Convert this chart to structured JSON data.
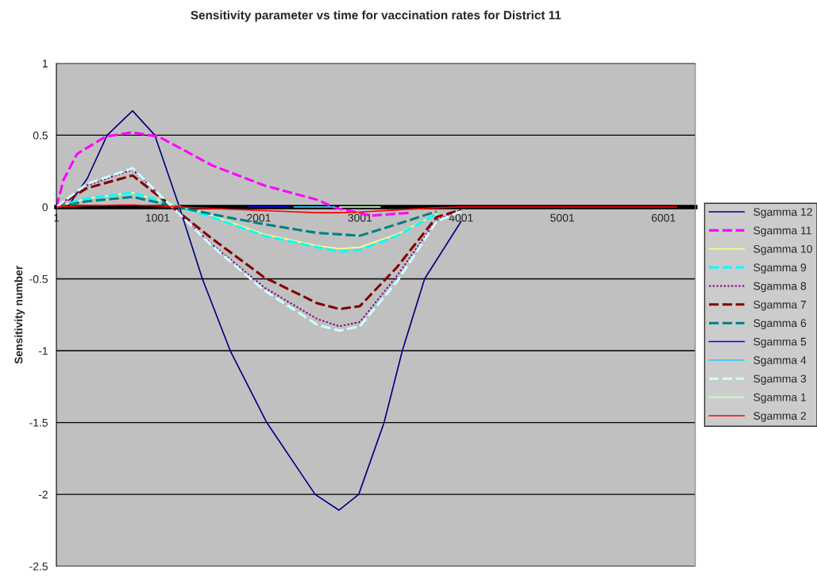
{
  "chart_data": {
    "type": "line",
    "title": "Sensitivity parameter vs time for vaccination rates for District 11",
    "ylabel": "Sensitivity number",
    "x": [
      1,
      300,
      754,
      1539,
      2056,
      2581,
      2800,
      3000,
      3366,
      3758,
      4000
    ],
    "xlim": [
      1,
      6315
    ],
    "xticks": [
      1,
      1001,
      2001,
      3001,
      4001,
      5001,
      6001
    ],
    "ylim": [
      -2.5,
      1
    ],
    "yticks": [
      -2.5,
      -2,
      -1.5,
      -1,
      -0.5,
      0,
      0.5,
      1
    ],
    "grid": "y",
    "legend": "right",
    "marker": "none",
    "series": [
      {
        "name": "Sgamma 12",
        "color": "#000080",
        "line_style": "solid",
        "x": [
          1,
          111,
          307,
          503,
          754,
          974,
          1217,
          1444,
          1719,
          2080,
          2558,
          2793,
          2989,
          3240,
          3420,
          3640,
          4001
        ],
        "values": [
          0,
          0,
          0.2,
          0.5,
          0.67,
          0.5,
          0,
          -0.5,
          -1,
          -1.5,
          -2,
          -2.11,
          -2,
          -1.5,
          -1,
          -0.5,
          -0.1
        ]
      },
      {
        "name": "Sgamma 11",
        "color": "#ff00ff",
        "line_style": "dashed",
        "x": [
          1,
          72,
          205,
          488,
          754,
          1013,
          1539,
          2056,
          2581,
          2738,
          3107,
          3500
        ],
        "values": [
          0,
          0.19,
          0.37,
          0.49,
          0.52,
          0.49,
          0.29,
          0.15,
          0.05,
          0,
          -0.06,
          -0.04
        ]
      },
      {
        "name": "Sgamma 10",
        "color": "#ffff80",
        "line_style": "solid",
        "values": [
          0,
          0.06,
          0.1,
          -0.06,
          -0.19,
          -0.27,
          -0.29,
          -0.28,
          -0.19,
          -0.05,
          null
        ]
      },
      {
        "name": "Sgamma 9",
        "color": "#00ffff",
        "line_style": "dashed",
        "values": [
          0,
          0.06,
          0.1,
          -0.07,
          -0.2,
          -0.28,
          -0.31,
          -0.3,
          -0.2,
          -0.05,
          null
        ]
      },
      {
        "name": "Sgamma 8",
        "color": "#800080",
        "line_style": "dotted",
        "values": [
          0,
          0.15,
          0.26,
          -0.26,
          -0.56,
          -0.78,
          -0.83,
          -0.8,
          -0.48,
          -0.09,
          -0.02
        ]
      },
      {
        "name": "Sgamma 7",
        "color": "#800000",
        "line_style": "dashed",
        "values": [
          0,
          0.13,
          0.22,
          -0.22,
          -0.49,
          -0.67,
          -0.71,
          -0.69,
          -0.42,
          -0.07,
          -0.02
        ]
      },
      {
        "name": "Sgamma 6",
        "color": "#008080",
        "line_style": "dashed",
        "values": [
          0,
          0.04,
          0.07,
          -0.05,
          -0.12,
          -0.18,
          -0.19,
          -0.2,
          -0.12,
          -0.03,
          null
        ]
      },
      {
        "name": "Sgamma 5",
        "color": "#0000ff",
        "line_style": "solid",
        "x": [
          1900,
          2300
        ],
        "values": [
          0,
          0
        ]
      },
      {
        "name": "Sgamma 4",
        "color": "#33ccff",
        "line_style": "solid",
        "x": [
          2350,
          2750
        ],
        "values": [
          0,
          0
        ]
      },
      {
        "name": "Sgamma 3",
        "color": "#ccffff",
        "line_style": "dashed",
        "values": [
          0,
          0.16,
          0.27,
          -0.27,
          -0.58,
          -0.82,
          -0.86,
          -0.83,
          -0.52,
          -0.1,
          -0.03
        ]
      },
      {
        "name": "Sgamma 1",
        "color": "#ccffcc",
        "line_style": "solid",
        "x": [
          2800,
          3200
        ],
        "values": [
          0,
          0
        ]
      },
      {
        "name": "Sgamma 2",
        "color": "#ff0000",
        "line_style": "solid",
        "x": [
          1,
          300,
          754,
          1217,
          1539,
          2056,
          2581,
          2800,
          3000,
          3366,
          3758,
          4000,
          4400,
          5000,
          6131
        ],
        "values": [
          0,
          0.01,
          0.015,
          0,
          -0.01,
          -0.025,
          -0.04,
          -0.04,
          -0.035,
          -0.02,
          -0.005,
          0,
          0,
          0,
          0
        ]
      }
    ]
  }
}
